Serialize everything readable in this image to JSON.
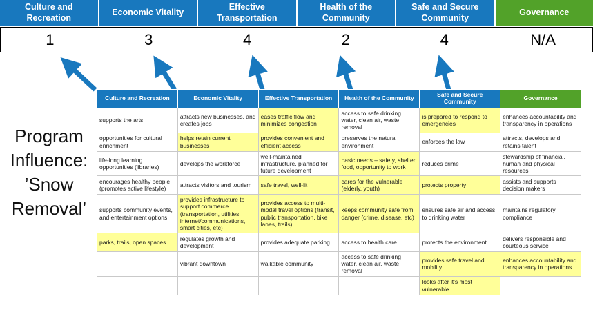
{
  "page": {
    "title": "Program Influence: ’Snow Removal’"
  },
  "colors": {
    "header_blue": "#1878be",
    "governance_green": "#52a229",
    "highlight_yellow": "#ffff99",
    "arrow_blue": "#1878be",
    "score_text": "#000000"
  },
  "banner": {
    "columns": [
      {
        "label": "Culture and Recreation",
        "score": "1",
        "bg": "#1878be"
      },
      {
        "label": "Economic Vitality",
        "score": "3",
        "bg": "#1878be"
      },
      {
        "label": "Effective Transportation",
        "score": "4",
        "bg": "#1878be"
      },
      {
        "label": "Health of the Community",
        "score": "2",
        "bg": "#1878be"
      },
      {
        "label": "Safe and Secure Community",
        "score": "4",
        "bg": "#1878be"
      },
      {
        "label": "Governance",
        "score": "N/A",
        "bg": "#52a229"
      }
    ]
  },
  "matrix": {
    "headers": [
      {
        "label": "Culture and Recreation",
        "bg": "#1878be"
      },
      {
        "label": "Economic Vitality",
        "bg": "#1878be"
      },
      {
        "label": "Effective Transportation",
        "bg": "#1878be"
      },
      {
        "label": "Health of the Community",
        "bg": "#1878be"
      },
      {
        "label": "Safe and Secure Community",
        "bg": "#1878be"
      },
      {
        "label": "Governance",
        "bg": "#52a229"
      }
    ],
    "rows": [
      {
        "cells": [
          {
            "text": "supports the arts",
            "highlight": false
          },
          {
            "text": "attracts new businesses, and creates jobs",
            "highlight": false
          },
          {
            "text": "eases traffic flow and minimizes congestion",
            "highlight": true
          },
          {
            "text": "access to safe drinking water, clean air, waste removal",
            "highlight": false
          },
          {
            "text": "is prepared to respond to emergencies",
            "highlight": true
          },
          {
            "text": "enhances accountability and transparency in operations",
            "highlight": false
          }
        ]
      },
      {
        "cells": [
          {
            "text": "opportunities for cultural enrichment",
            "highlight": false
          },
          {
            "text": "helps retain current businesses",
            "highlight": true
          },
          {
            "text": "provides convenient and efficient access",
            "highlight": true
          },
          {
            "text": "preserves the natural environment",
            "highlight": false
          },
          {
            "text": "enforces the law",
            "highlight": false
          },
          {
            "text": "attracts, develops and retains talent",
            "highlight": false
          }
        ]
      },
      {
        "cells": [
          {
            "text": "life-long learning opportunities (libraries)",
            "highlight": false
          },
          {
            "text": "develops the workforce",
            "highlight": false
          },
          {
            "text": "well-maintained infrastructure, planned for future development",
            "highlight": false
          },
          {
            "text": "basic needs – safety, shelter, food, opportunity to work",
            "highlight": true
          },
          {
            "text": "reduces crime",
            "highlight": false
          },
          {
            "text": "stewardship of financial, human and physical resources",
            "highlight": false
          }
        ]
      },
      {
        "cells": [
          {
            "text": "encourages healthy people (promotes active lifestyle)",
            "highlight": false
          },
          {
            "text": "attracts visitors and tourism",
            "highlight": false
          },
          {
            "text": "safe travel, well-lit",
            "highlight": true
          },
          {
            "text": "cares for the vulnerable (elderly, youth)",
            "highlight": true
          },
          {
            "text": "protects property",
            "highlight": true
          },
          {
            "text": "assists and supports decision makers",
            "highlight": false
          }
        ]
      },
      {
        "cells": [
          {
            "text": "supports community events, and entertainment options",
            "highlight": false
          },
          {
            "text": "provides infrastructure to support commerce (transportation, utilities, internet/communications, smart cities, etc)",
            "highlight": true
          },
          {
            "text": "provides access to multi-modal travel options (transit, public transportation, bike lanes, trails)",
            "highlight": true
          },
          {
            "text": "keeps community safe from danger (crime, disease, etc)",
            "highlight": true
          },
          {
            "text": "ensures safe air and access to drinking water",
            "highlight": false
          },
          {
            "text": "maintains regulatory compliance",
            "highlight": false
          }
        ]
      },
      {
        "cells": [
          {
            "text": "parks, trails, open spaces",
            "highlight": true
          },
          {
            "text": "regulates growth and development",
            "highlight": false
          },
          {
            "text": "provides adequate parking",
            "highlight": false
          },
          {
            "text": "access to health care",
            "highlight": false
          },
          {
            "text": "protects the environment",
            "highlight": false
          },
          {
            "text": "delivers responsible and courteous service",
            "highlight": false
          }
        ]
      },
      {
        "cells": [
          {
            "text": "",
            "highlight": false
          },
          {
            "text": "vibrant downtown",
            "highlight": false
          },
          {
            "text": "walkable community",
            "highlight": false
          },
          {
            "text": "access to safe drinking water, clean air, waste removal",
            "highlight": false
          },
          {
            "text": "provides safe travel and mobility",
            "highlight": true
          },
          {
            "text": "enhances accountability and transparency in operations",
            "highlight": true
          }
        ]
      },
      {
        "cells": [
          {
            "text": "",
            "highlight": false
          },
          {
            "text": "",
            "highlight": false
          },
          {
            "text": "",
            "highlight": false
          },
          {
            "text": "",
            "highlight": false
          },
          {
            "text": "looks after it’s most vulnerable",
            "highlight": true
          },
          {
            "text": "",
            "highlight": false
          }
        ]
      }
    ]
  }
}
